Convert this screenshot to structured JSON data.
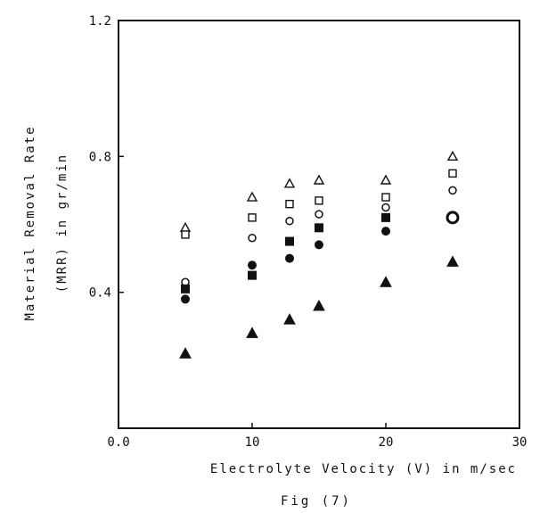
{
  "chart_data": {
    "type": "scatter",
    "title": "",
    "caption": "Fig (7)",
    "xlabel": "Electrolyte Velocity (V) in m/sec",
    "ylabel_line1": "Material Removal Rate",
    "ylabel_line2": "(MRR) in gr/min",
    "xlim": [
      0,
      30
    ],
    "ylim": [
      0,
      1.2
    ],
    "xticks": [
      0,
      10,
      20,
      30
    ],
    "xtick_labels": [
      "0.0",
      "10",
      "20",
      "30"
    ],
    "yticks": [
      0.4,
      0.8,
      1.2
    ],
    "ytick_labels": [
      "0.4",
      "0.8",
      "1.2"
    ],
    "grid": false,
    "legend": "none",
    "series": [
      {
        "marker": "triangle-open",
        "x": [
          5,
          10,
          12.8,
          15,
          20,
          25
        ],
        "y": [
          0.59,
          0.68,
          0.72,
          0.73,
          0.73,
          0.8
        ]
      },
      {
        "marker": "square-open",
        "x": [
          5,
          10,
          12.8,
          15,
          20,
          25
        ],
        "y": [
          0.57,
          0.62,
          0.66,
          0.67,
          0.68,
          0.75
        ]
      },
      {
        "marker": "circle-open",
        "x": [
          5,
          10,
          12.8,
          15,
          20,
          25
        ],
        "y": [
          0.43,
          0.56,
          0.61,
          0.63,
          0.65,
          0.7
        ]
      },
      {
        "marker": "square-filled",
        "x": [
          5,
          10,
          12.8,
          15,
          20
        ],
        "y": [
          0.41,
          0.45,
          0.55,
          0.59,
          0.62
        ]
      },
      {
        "marker": "circle-filled",
        "x": [
          5,
          10,
          12.8,
          15,
          20
        ],
        "y": [
          0.38,
          0.48,
          0.5,
          0.54,
          0.58
        ]
      },
      {
        "marker": "triangle-filled",
        "x": [
          5,
          10,
          12.8,
          15,
          20,
          25
        ],
        "y": [
          0.22,
          0.28,
          0.32,
          0.36,
          0.43,
          0.49
        ]
      },
      {
        "marker": "circle-bold-open",
        "x": [
          25
        ],
        "y": [
          0.62
        ]
      }
    ]
  }
}
